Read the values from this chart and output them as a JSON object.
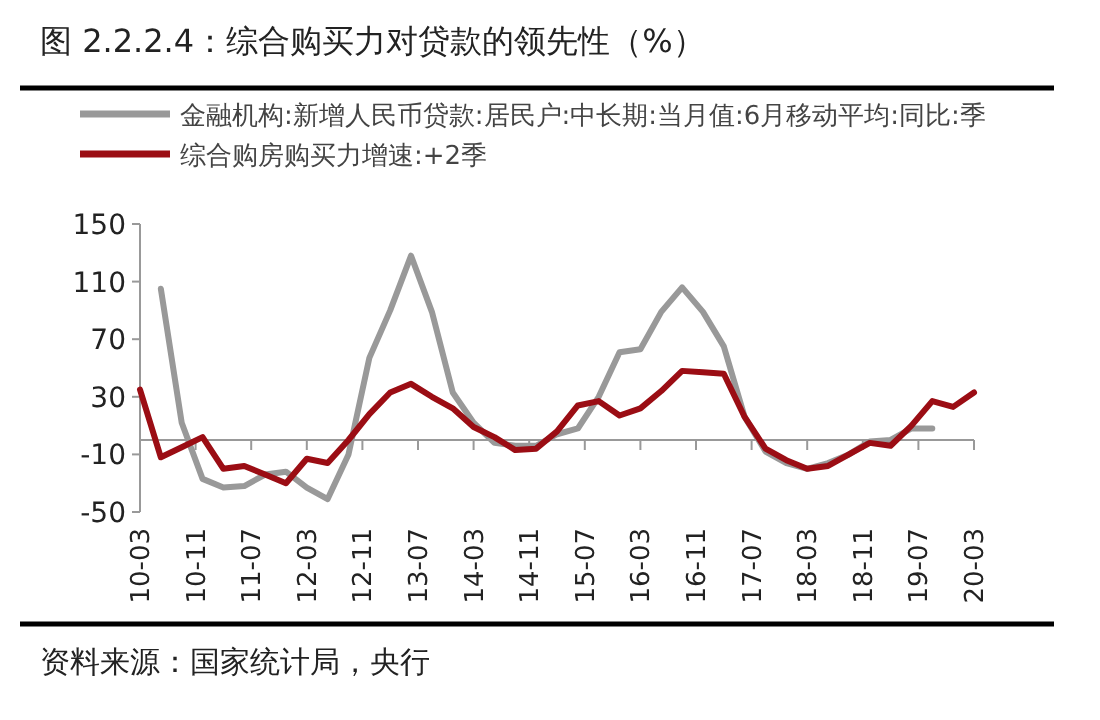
{
  "chart_data": {
    "type": "line",
    "title": "图 2.2.2.4：综合购买力对贷款的领先性（%）",
    "annotations": [
      "资料来源：国家统计局，央行"
    ],
    "xlim": [
      "2010-03",
      "2020-03"
    ],
    "xticks": [
      {
        "value": "2010-03",
        "label": "10-03"
      },
      {
        "value": "2010-11",
        "label": "10-11"
      },
      {
        "value": "2011-07",
        "label": "11-07"
      },
      {
        "value": "2012-03",
        "label": "12-03"
      },
      {
        "value": "2012-11",
        "label": "12-11"
      },
      {
        "value": "2013-07",
        "label": "13-07"
      },
      {
        "value": "2014-03",
        "label": "14-03"
      },
      {
        "value": "2014-11",
        "label": "14-11"
      },
      {
        "value": "2015-07",
        "label": "15-07"
      },
      {
        "value": "2016-03",
        "label": "16-03"
      },
      {
        "value": "2016-11",
        "label": "16-11"
      },
      {
        "value": "2017-07",
        "label": "17-07"
      },
      {
        "value": "2018-03",
        "label": "18-03"
      },
      {
        "value": "2018-11",
        "label": "18-11"
      },
      {
        "value": "2019-07",
        "label": "19-07"
      },
      {
        "value": "2020-03",
        "label": "20-03"
      }
    ],
    "ylim": [
      -50,
      150
    ],
    "yticks": [
      -50,
      -10,
      30,
      70,
      110,
      150
    ],
    "grid": false,
    "legend": "top",
    "line_style": "solid",
    "series": [
      {
        "name": "金融机构:新增人民币贷款:居民户:中长期:当月值:6月移动平均:同比:季",
        "color": "#999999",
        "x": [
          "2010-06",
          "2010-09",
          "2010-12",
          "2011-03",
          "2011-06",
          "2011-09",
          "2011-12",
          "2012-03",
          "2012-06",
          "2012-09",
          "2012-12",
          "2013-03",
          "2013-06",
          "2013-09",
          "2013-12",
          "2014-03",
          "2014-06",
          "2014-09",
          "2014-12",
          "2015-03",
          "2015-06",
          "2015-09",
          "2015-12",
          "2016-03",
          "2016-06",
          "2016-09",
          "2016-12",
          "2017-03",
          "2017-06",
          "2017-09",
          "2017-12",
          "2018-03",
          "2018-06",
          "2018-09",
          "2018-12",
          "2019-03",
          "2019-06",
          "2019-09"
        ],
        "values": [
          105,
          12,
          -27,
          -33,
          -32,
          -24,
          -22,
          -33,
          -41,
          -10,
          57,
          90,
          128,
          89,
          33,
          12,
          -2,
          -4,
          -4,
          4,
          8,
          30,
          61,
          63,
          89,
          106,
          89,
          65,
          16,
          -8,
          -16,
          -20,
          -16,
          -10,
          -1,
          0,
          8,
          8
        ]
      },
      {
        "name": "综合购房购买力增速:+2季",
        "color": "#9b0d14",
        "x": [
          "2010-03",
          "2010-06",
          "2010-09",
          "2010-12",
          "2011-03",
          "2011-06",
          "2011-09",
          "2011-12",
          "2012-03",
          "2012-06",
          "2012-09",
          "2012-12",
          "2013-03",
          "2013-06",
          "2013-09",
          "2013-12",
          "2014-03",
          "2014-06",
          "2014-09",
          "2014-12",
          "2015-03",
          "2015-06",
          "2015-09",
          "2015-12",
          "2016-03",
          "2016-06",
          "2016-09",
          "2016-12",
          "2017-03",
          "2017-06",
          "2017-09",
          "2017-12",
          "2018-03",
          "2018-06",
          "2018-09",
          "2018-12",
          "2019-03",
          "2019-06",
          "2019-09",
          "2019-12",
          "2020-03"
        ],
        "values": [
          35,
          -12,
          -5,
          2,
          -20,
          -18,
          -24,
          -30,
          -13,
          -16,
          0,
          18,
          33,
          39,
          30,
          22,
          9,
          2,
          -7,
          -6,
          6,
          24,
          27,
          17,
          22,
          34,
          48,
          47,
          46,
          16,
          -6,
          -14,
          -20,
          -18,
          -10,
          -2,
          -4,
          10,
          27,
          23,
          33
        ]
      }
    ]
  }
}
